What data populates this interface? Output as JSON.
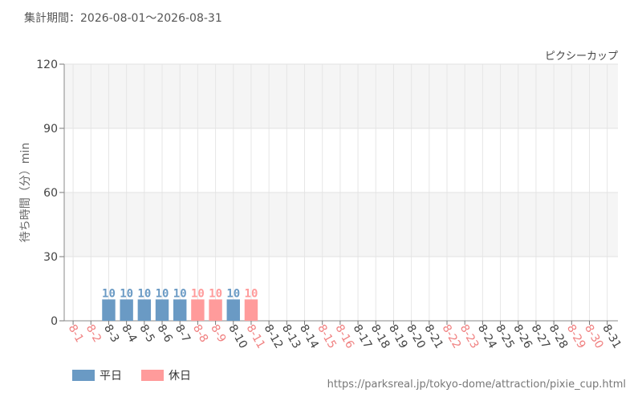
{
  "header": {
    "period": "集計期間：2026-08-01～2026-08-31"
  },
  "chart_data": {
    "type": "bar",
    "attraction": "ピクシーカップ",
    "ylabel": "待ち時間（分）min",
    "ylim": [
      0,
      120
    ],
    "yticks": [
      0,
      30,
      60,
      90,
      120
    ],
    "categories": [
      "8-1",
      "8-2",
      "8-3",
      "8-4",
      "8-5",
      "8-6",
      "8-7",
      "8-8",
      "8-9",
      "8-10",
      "8-11",
      "8-12",
      "8-13",
      "8-14",
      "8-15",
      "8-16",
      "8-17",
      "8-18",
      "8-19",
      "8-20",
      "8-21",
      "8-22",
      "8-23",
      "8-24",
      "8-25",
      "8-26",
      "8-27",
      "8-28",
      "8-29",
      "8-30",
      "8-31"
    ],
    "holidays": [
      "8-1",
      "8-2",
      "8-8",
      "8-9",
      "8-11",
      "8-15",
      "8-16",
      "8-22",
      "8-23",
      "8-29",
      "8-30"
    ],
    "values": [
      null,
      null,
      10,
      10,
      10,
      10,
      10,
      10,
      10,
      10,
      10,
      null,
      null,
      null,
      null,
      null,
      null,
      null,
      null,
      null,
      null,
      null,
      null,
      null,
      null,
      null,
      null,
      null,
      null,
      null,
      null
    ],
    "grid": true,
    "colors": {
      "weekday": "#6a9ac4",
      "holiday": "#ff9b9b",
      "holiday_label": "#f08080",
      "weekday_label": "#444444"
    },
    "legend": [
      {
        "key": "weekday",
        "label": "平日"
      },
      {
        "key": "holiday",
        "label": "休日"
      }
    ]
  },
  "footer": {
    "url": "https://parksreal.jp/tokyo-dome/attraction/pixie_cup.html"
  }
}
